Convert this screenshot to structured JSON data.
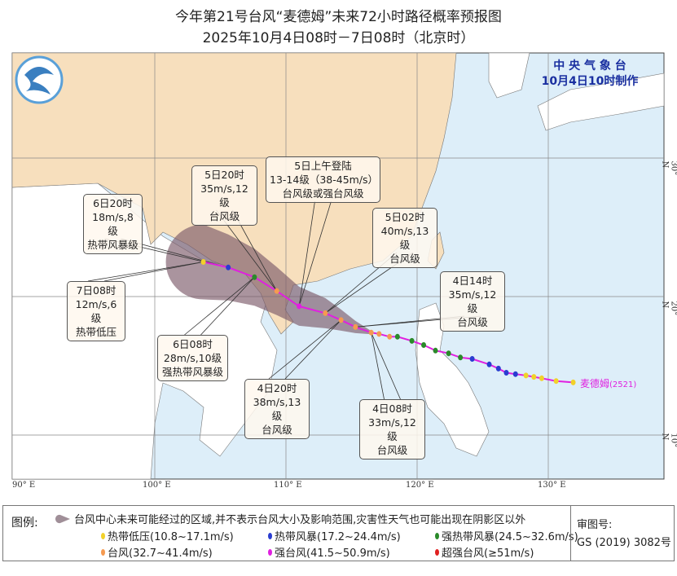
{
  "title": {
    "line1": "今年第21号台风“麦德姆”未来72小时路径概率预报图",
    "line2": "2025年10月4日08时－7日08时（北京时）"
  },
  "header": {
    "agency": "中 央 气 象 台",
    "issued": "10月4日10时制作"
  },
  "typhoon_label": "麦德姆",
  "typhoon_id": "(2521)",
  "colors": {
    "sea": "#ddeef9",
    "china": "#f7dfbd",
    "land": "#ffffff",
    "track": "#e020e0",
    "cone": "#7d5a6a",
    "td": "#f2d12a",
    "ts": "#2a3dd0",
    "sts": "#2a8a2a",
    "ty": "#f59a50",
    "sty": "#e020e0",
    "supty": "#e02020"
  },
  "axes": {
    "lon_labels": [
      "90° E",
      "100° E",
      "110° E",
      "120° E",
      "130° E"
    ],
    "lat_labels": [
      "10° N",
      "20° N",
      "30° N"
    ]
  },
  "past_track": [
    [
      131.9,
      13.8,
      "td"
    ],
    [
      130.6,
      13.9,
      "td"
    ],
    [
      129.5,
      14.1,
      "td"
    ],
    [
      128.9,
      14.2,
      "td"
    ],
    [
      128.3,
      14.3,
      "td"
    ],
    [
      127.5,
      14.4,
      "ts"
    ],
    [
      126.8,
      14.5,
      "ts"
    ],
    [
      126.2,
      14.8,
      "ts"
    ],
    [
      125.5,
      15.1,
      "ts"
    ],
    [
      124.2,
      15.5,
      "ts"
    ],
    [
      123.3,
      15.6,
      "sts"
    ],
    [
      122.4,
      15.9,
      "sts"
    ],
    [
      121.4,
      16.1,
      "sts"
    ],
    [
      120.5,
      16.5,
      "sts"
    ],
    [
      119.6,
      16.8,
      "sts"
    ],
    [
      118.5,
      17.1,
      "sts"
    ],
    [
      117.9,
      17.1,
      "ty"
    ],
    [
      117.1,
      17.3,
      "ty"
    ],
    [
      116.5,
      17.4,
      "ty"
    ]
  ],
  "forecast": [
    {
      "lon": 115.3,
      "lat": 17.8,
      "cat": "ty",
      "lines": [
        "4日14时",
        "35m/s,12级",
        "台风级"
      ]
    },
    {
      "lon": 114.2,
      "lat": 18.3,
      "cat": "ty",
      "lines": [
        "4日20时",
        "38m/s,13级",
        "台风级"
      ]
    },
    {
      "lon": 113.0,
      "lat": 18.8,
      "cat": "ty",
      "lines": [
        "5日02时",
        "40m/s,13级",
        "台风级"
      ]
    },
    {
      "lon": 111.0,
      "lat": 19.3,
      "cat": "sty",
      "lines": [
        "5日上午登陆",
        "13-14级（38-45m/s）",
        "台风级或强台风级"
      ]
    },
    {
      "lon": 109.3,
      "lat": 20.4,
      "cat": "ty",
      "lines": [
        "5日20时",
        "35m/s,12级",
        "台风级"
      ]
    },
    {
      "lon": 107.6,
      "lat": 21.4,
      "cat": "sts",
      "lines": [
        "6日08时",
        "28m/s,10级",
        "强热带风暴级"
      ]
    },
    {
      "lon": 105.6,
      "lat": 22.1,
      "cat": "ts",
      "lines": [
        "6日20时",
        "18m/s,8级",
        "热带风暴级"
      ]
    },
    {
      "lon": 103.7,
      "lat": 22.5,
      "cat": "td",
      "lines": [
        "7日08时",
        "12m/s,6级",
        "热带低压"
      ]
    }
  ],
  "current": {
    "lon": 116.5,
    "lat": 17.4,
    "lines": [
      "4日08时",
      "33m/s,12级",
      "台风级"
    ]
  },
  "legend": {
    "label": "图例:",
    "cone": "台风中心未来可能经过的区域,并不表示台风大小及影响范围,灾害性天气也可能出现在阴影区以外",
    "items": [
      {
        "cat": "td",
        "text": "热带低压(10.8~17.1m/s)"
      },
      {
        "cat": "ts",
        "text": "热带风暴(17.2~24.4m/s)"
      },
      {
        "cat": "sts",
        "text": "强热带风暴(24.5~32.6m/s)"
      },
      {
        "cat": "ty",
        "text": "台风(32.7~41.4m/s)"
      },
      {
        "cat": "sty",
        "text": "强台风(41.5~50.9m/s)"
      },
      {
        "cat": "supty",
        "text": "超强台风(≥51m/s)"
      }
    ],
    "review_label": "审图号:",
    "review_no": "GS (2019) 3082号"
  }
}
